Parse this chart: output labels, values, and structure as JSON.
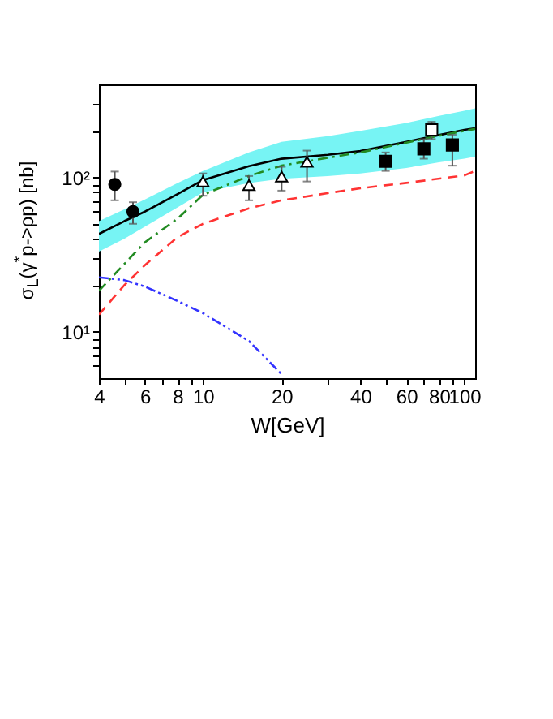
{
  "chart_data": {
    "type": "line",
    "xlabel": "W[GeV]",
    "ylabel": "σ$_{L}$(γ$^{*}$p->ρp)  [nb]",
    "log": "xy",
    "grid": false,
    "xlim": [
      4,
      110
    ],
    "ylim": [
      5,
      400
    ],
    "xticks": [
      4,
      {
        "value": 5,
        "label": null
      },
      6,
      {
        "value": 7,
        "label": null
      },
      8,
      {
        "value": 9,
        "label": null
      },
      10,
      20,
      {
        "value": 30,
        "label": null
      },
      40,
      {
        "value": 50,
        "label": null
      },
      60,
      {
        "value": 70,
        "label": null
      },
      80,
      {
        "value": 90,
        "label": null
      },
      100
    ],
    "yticks": [
      {
        "value": 6,
        "label": null
      },
      {
        "value": 7,
        "label": null
      },
      {
        "value": 8,
        "label": null
      },
      {
        "value": 9,
        "label": null
      },
      {
        "value": 10,
        "label": "10¹"
      },
      {
        "value": 20,
        "label": null
      },
      {
        "value": 30,
        "label": null
      },
      {
        "value": 40,
        "label": null
      },
      {
        "value": 50,
        "label": null
      },
      {
        "value": 60,
        "label": null
      },
      {
        "value": 70,
        "label": null
      },
      {
        "value": 80,
        "label": null
      },
      {
        "value": 90,
        "label": null
      },
      {
        "value": 100,
        "label": "10²"
      },
      {
        "value": 200,
        "label": null
      },
      {
        "value": 300,
        "label": null
      }
    ],
    "series": [
      {
        "color": "#000000",
        "line_style": "solid",
        "marker": "none",
        "x": [
          4,
          5,
          6,
          8,
          10,
          15,
          20,
          30,
          40,
          60,
          80,
          100,
          110
        ],
        "values": [
          43,
          52,
          60,
          78,
          96,
          118,
          132,
          140,
          148,
          170,
          188,
          203,
          208
        ],
        "lower": [
          33,
          40,
          48,
          64,
          80,
          92,
          98,
          102,
          106,
          115,
          125,
          132,
          136
        ],
        "upper": [
          52,
          62,
          72,
          92,
          110,
          145,
          170,
          185,
          200,
          225,
          250,
          270,
          280
        ]
      },
      {
        "color": "#228b22",
        "line_style": "dashdot",
        "marker": "none",
        "x": [
          4,
          6,
          8,
          10,
          15,
          20,
          30,
          40,
          60,
          80,
          100,
          110
        ],
        "values": [
          18.4,
          38,
          54,
          77,
          102,
          119,
          134,
          145,
          168,
          186,
          200,
          206
        ]
      },
      {
        "color": "#ff3333",
        "line_style": "dashed",
        "marker": "none",
        "x": [
          4,
          5,
          6,
          8,
          10,
          15,
          20,
          30,
          40,
          60,
          100,
          110
        ],
        "values": [
          12.9,
          20,
          27,
          41,
          50,
          63,
          71,
          79,
          85,
          92,
          103,
          110
        ]
      },
      {
        "color": "#3333ff",
        "line_style": "dashdotdot",
        "marker": "none",
        "x": [
          4,
          5,
          6,
          8,
          10,
          15,
          20
        ],
        "values": [
          22.5,
          21.6,
          19.6,
          15.8,
          13.2,
          8.7,
          5.3
        ]
      },
      {
        "type": "scatter",
        "color": "#000000",
        "marker": "circle",
        "x": [
          4.6,
          5.4
        ],
        "values": [
          90,
          60
        ],
        "errors": [
          [
            71,
            109
          ],
          [
            50,
            69
          ]
        ]
      },
      {
        "type": "scatter",
        "color": "#ffffff",
        "marker": "triangle",
        "x": [
          10,
          15,
          20,
          25
        ],
        "values": [
          94,
          89,
          101,
          126
        ],
        "errors": [
          [
            76,
            106
          ],
          [
            71,
            102
          ],
          [
            82,
            117
          ],
          [
            94,
            149
          ]
        ]
      },
      {
        "type": "scatter",
        "color": "#000000",
        "marker": "square",
        "x": [
          50,
          70,
          90
        ],
        "values": [
          127,
          153,
          162
        ],
        "errors": [
          [
            110,
            145
          ],
          [
            132,
            177
          ],
          [
            119,
            189
          ]
        ]
      },
      {
        "type": "scatter",
        "color": "#ffffff",
        "marker": "square",
        "x": [
          75
        ],
        "values": [
          203
        ],
        "errors": [
          [
            177,
            229
          ]
        ]
      }
    ]
  }
}
